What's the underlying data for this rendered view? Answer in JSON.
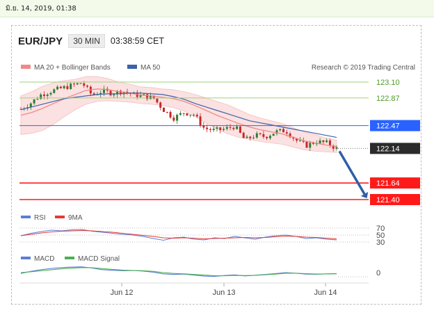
{
  "date_label": "มิ.ย. 14, 2019, 01:38",
  "header": {
    "pair": "EUR/JPY",
    "timeframe": "30 MIN",
    "clock": "03:38:59 CET"
  },
  "legend": {
    "ma20": "MA 20 + Bollinger Bands",
    "ma50": "MA 50",
    "credit": "Research © 2019 Trading Central"
  },
  "colors": {
    "ma20": "#ef8a8a",
    "ma50": "#3d62a8",
    "up": "#2e7d32",
    "down": "#c62828",
    "resistance": "#9ed27a",
    "support": "#ff1a1a",
    "pivot": "#2962ff",
    "last": "#2b2b2b",
    "arrow": "#2f5ea8"
  },
  "chart_data": [
    {
      "type": "line",
      "title": "EUR/JPY 30 MIN",
      "x_ticks": [
        "Jun 12",
        "Jun 13",
        "Jun 14"
      ],
      "ylim": [
        121.3,
        123.3
      ],
      "levels": [
        {
          "value": 123.1,
          "label": "123.10",
          "kind": "resistance"
        },
        {
          "value": 122.87,
          "label": "122.87",
          "kind": "resistance"
        },
        {
          "value": 122.47,
          "label": "122.47",
          "kind": "pivot"
        },
        {
          "value": 122.14,
          "label": "122.14",
          "kind": "last"
        },
        {
          "value": 121.64,
          "label": "121.64",
          "kind": "support"
        },
        {
          "value": 121.4,
          "label": "121.40",
          "kind": "support"
        }
      ],
      "series": [
        {
          "name": "MA 20 + Bollinger Bands",
          "values": [
            122.62,
            122.66,
            122.72,
            122.79,
            122.86,
            122.92,
            122.98,
            123.0,
            122.99,
            122.96,
            122.94,
            122.91,
            122.9,
            122.88,
            122.86,
            122.82,
            122.76,
            122.69,
            122.62,
            122.56,
            122.5,
            122.45,
            122.41,
            122.38,
            122.35,
            122.3,
            122.25,
            122.22,
            122.19,
            122.17
          ]
        },
        {
          "name": "MA 50",
          "values": [
            122.7,
            122.74,
            122.78,
            122.82,
            122.86,
            122.88,
            122.9,
            122.92,
            122.93,
            122.93,
            122.94,
            122.94,
            122.93,
            122.92,
            122.89,
            122.85,
            122.79,
            122.74,
            122.69,
            122.64,
            122.59,
            122.54,
            122.51,
            122.48,
            122.45,
            122.42,
            122.39,
            122.36,
            122.33,
            122.3
          ]
        },
        {
          "name": "Price",
          "values": [
            122.71,
            122.8,
            122.92,
            122.97,
            123.01,
            123.05,
            123.09,
            122.91,
            122.97,
            122.94,
            122.97,
            122.92,
            122.9,
            122.87,
            122.7,
            122.58,
            122.66,
            122.63,
            122.43,
            122.4,
            122.42,
            122.46,
            122.26,
            122.33,
            122.31,
            122.38,
            122.4,
            122.26,
            122.18,
            122.24,
            122.22,
            122.14
          ]
        }
      ],
      "projection": {
        "from": 122.14,
        "to": 121.4
      }
    },
    {
      "type": "line",
      "ylim": [
        25,
        75
      ],
      "levels": [
        {
          "value": 70,
          "label": "70"
        },
        {
          "value": 50,
          "label": "50"
        },
        {
          "value": 30,
          "label": "30"
        }
      ],
      "series": [
        {
          "name": "RSI",
          "values": [
            48,
            55,
            60,
            64,
            62,
            65,
            66,
            61,
            58,
            55,
            52,
            50,
            46,
            40,
            35,
            42,
            44,
            38,
            36,
            42,
            40,
            46,
            42,
            38,
            44,
            48,
            50,
            46,
            40,
            42,
            38,
            36
          ]
        },
        {
          "name": "9MA",
          "values": [
            48,
            52,
            56,
            59,
            61,
            62,
            63,
            62,
            60,
            58,
            55,
            52,
            49,
            46,
            42,
            41,
            42,
            41,
            39,
            40,
            41,
            42,
            43,
            42,
            43,
            45,
            47,
            46,
            44,
            43,
            41,
            39
          ]
        }
      ]
    },
    {
      "type": "line",
      "ylim": [
        -1,
        1
      ],
      "levels": [
        {
          "value": 0,
          "label": "0"
        }
      ],
      "series": [
        {
          "name": "MACD",
          "values": [
            -0.1,
            0.15,
            0.35,
            0.5,
            0.6,
            0.66,
            0.68,
            0.55,
            0.35,
            0.28,
            0.22,
            0.25,
            0.18,
            0.05,
            -0.15,
            -0.22,
            -0.18,
            -0.3,
            -0.42,
            -0.45,
            -0.35,
            -0.28,
            -0.4,
            -0.32,
            -0.22,
            -0.12,
            0.0,
            -0.08,
            -0.18,
            -0.2,
            -0.15,
            -0.12
          ]
        },
        {
          "name": "MACD Signal",
          "values": [
            0.0,
            0.1,
            0.22,
            0.34,
            0.45,
            0.54,
            0.6,
            0.58,
            0.48,
            0.38,
            0.3,
            0.26,
            0.22,
            0.14,
            0.0,
            -0.1,
            -0.15,
            -0.22,
            -0.3,
            -0.38,
            -0.38,
            -0.34,
            -0.36,
            -0.33,
            -0.26,
            -0.18,
            -0.08,
            -0.08,
            -0.13,
            -0.17,
            -0.16,
            -0.14
          ]
        }
      ]
    }
  ],
  "rsi_legend": {
    "rsi": "RSI",
    "ma": "9MA"
  },
  "macd_legend": {
    "macd": "MACD",
    "signal": "MACD Signal"
  }
}
